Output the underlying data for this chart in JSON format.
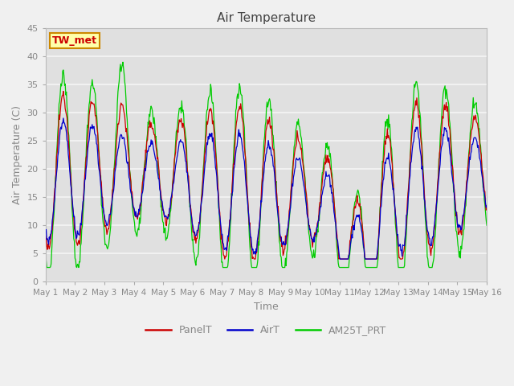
{
  "title": "Air Temperature",
  "xlabel": "Time",
  "ylabel": "Air Temperature (C)",
  "ylim": [
    0,
    45
  ],
  "legend_labels": [
    "PanelT",
    "AirT",
    "AM25T_PRT"
  ],
  "legend_colors": [
    "#cc0000",
    "#0000cc",
    "#00cc00"
  ],
  "fig_bg": "#f0f0f0",
  "plot_bg": "#e0e0e0",
  "grid_color": "#f5f5f5",
  "annotation_text": "TW_met",
  "annotation_bg": "#ffffaa",
  "annotation_border": "#cc8800",
  "annotation_text_color": "#cc0000",
  "tick_label_color": "#888888",
  "axis_label_color": "#888888",
  "title_color": "#444444",
  "yticks": [
    0,
    5,
    10,
    15,
    20,
    25,
    30,
    35,
    40,
    45
  ],
  "xtick_days": [
    0,
    1,
    2,
    3,
    4,
    5,
    6,
    7,
    8,
    9,
    10,
    11,
    12,
    13,
    14,
    15
  ],
  "xtick_labels": [
    "May 1",
    "May 2",
    "May 3",
    "May 4",
    "May 5",
    "May 6",
    "May 7",
    "May 8",
    "May 9",
    "May 10",
    "May 11",
    "May 12",
    "May 13",
    "May 14",
    "May 15",
    "May 16"
  ]
}
